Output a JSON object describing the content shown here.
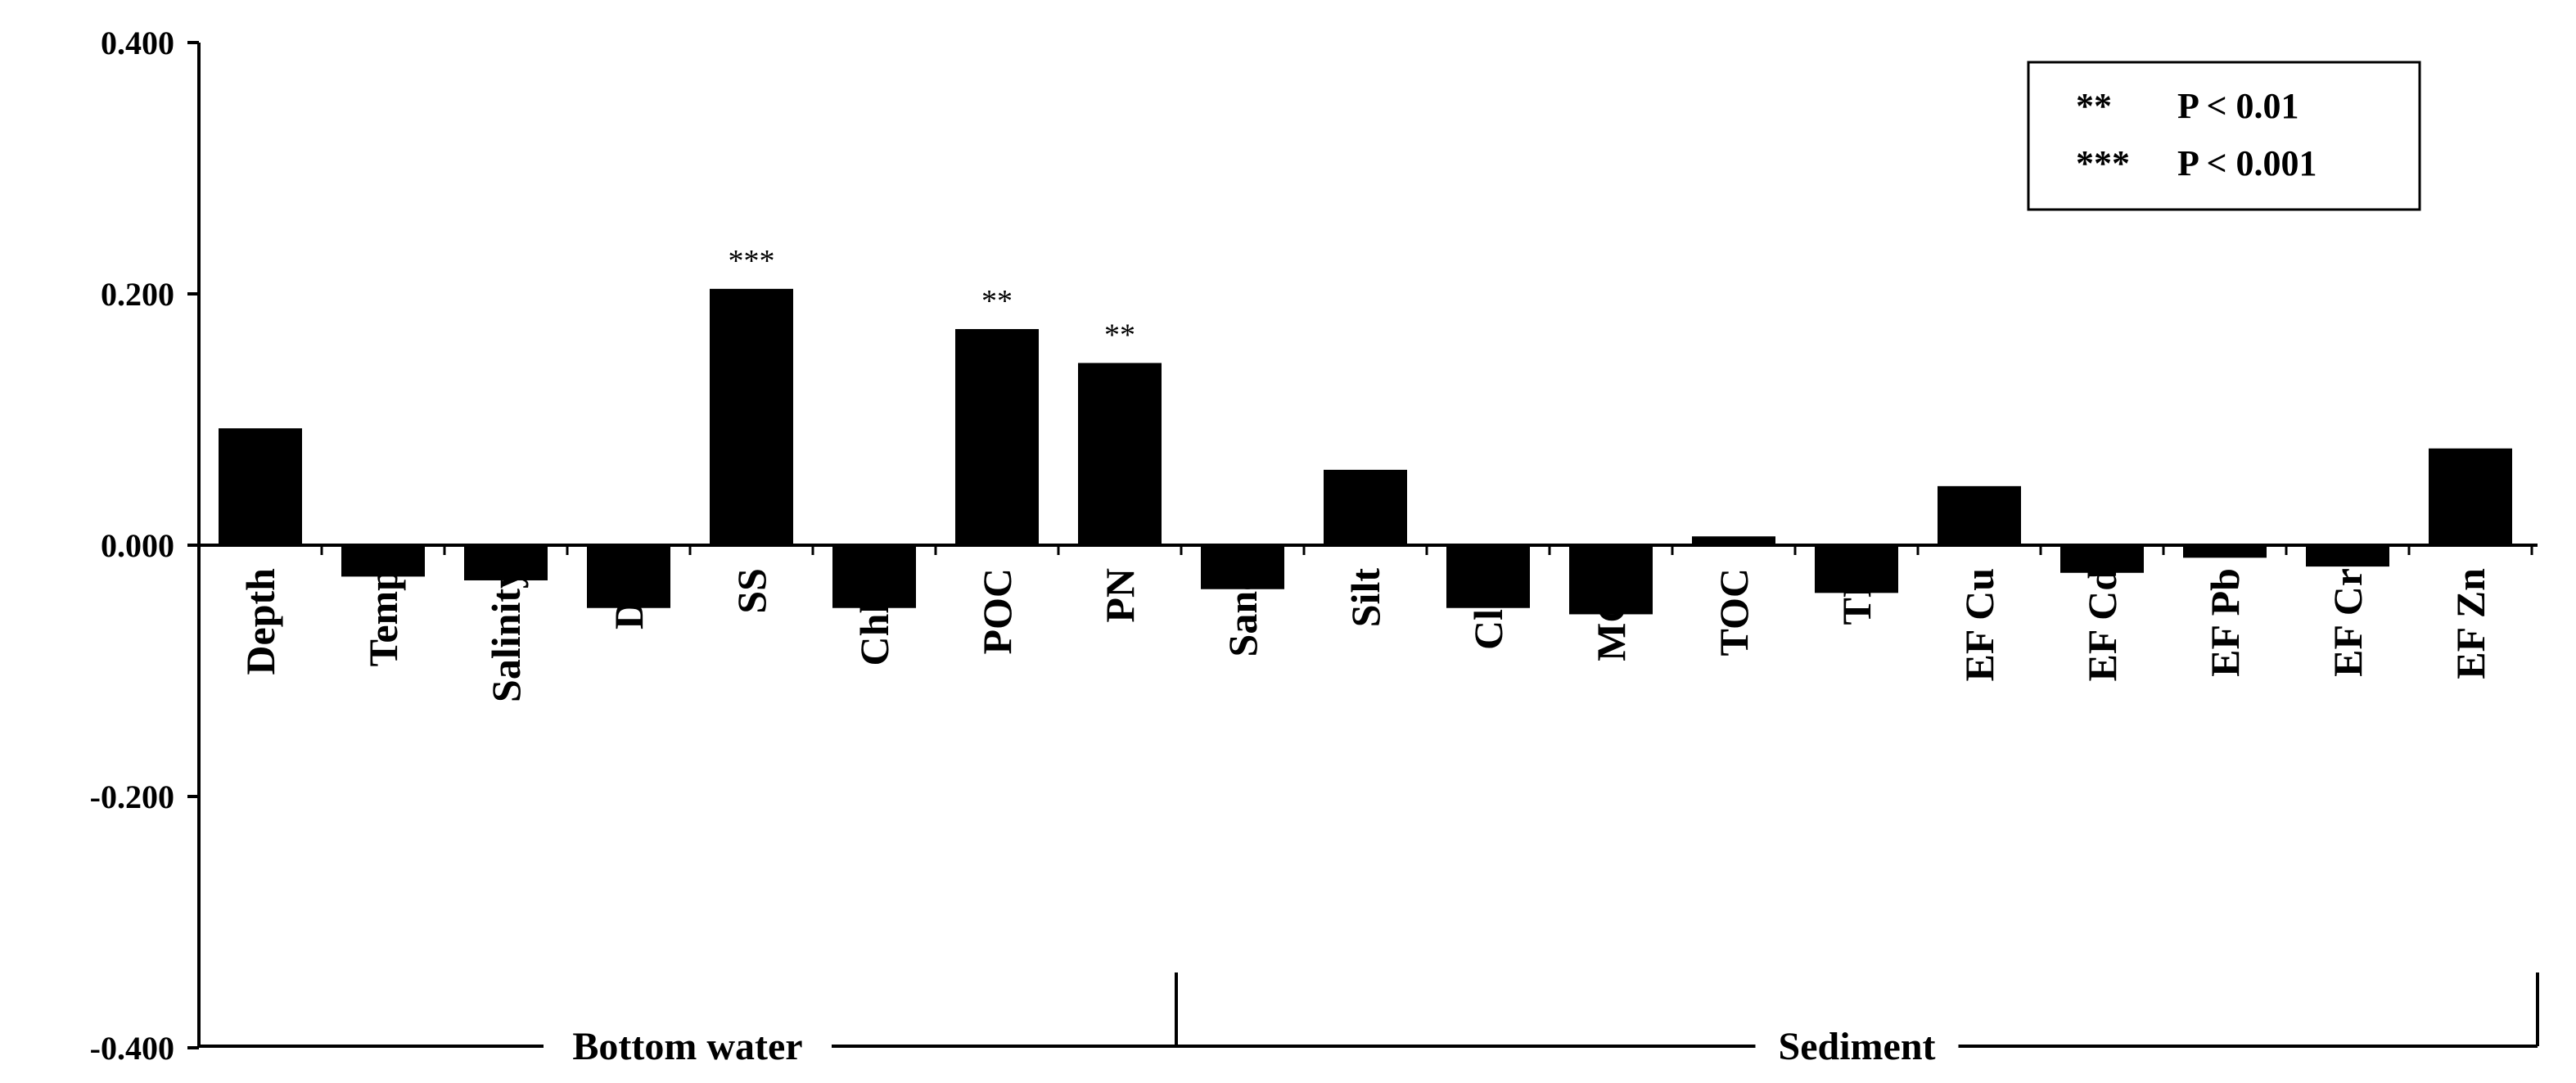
{
  "chart_data": {
    "type": "bar",
    "title": "",
    "xlabel": "",
    "ylabel": "",
    "ylim": [
      -0.4,
      0.4
    ],
    "yticks": [
      "0.400",
      "0.200",
      "0.000",
      "-0.200",
      "-0.400"
    ],
    "categories": [
      "Depth",
      "Temp",
      "Salinity",
      "DO",
      "SS",
      "Chl-a",
      "POC",
      "PN",
      "Sand",
      "Silt",
      "Clay",
      "MGS",
      "TOC",
      "TN",
      "EF Cu",
      "EF Cd",
      "EF Pb",
      "EF Cr",
      "EF Zn"
    ],
    "values": [
      0.093,
      -0.025,
      -0.028,
      -0.05,
      0.204,
      -0.05,
      0.172,
      0.145,
      -0.035,
      0.06,
      -0.05,
      -0.055,
      0.007,
      -0.038,
      0.047,
      -0.022,
      -0.01,
      -0.017,
      0.077
    ],
    "significance": [
      "",
      "",
      "",
      "",
      "***",
      "",
      "**",
      "**",
      "",
      "",
      "",
      "",
      "",
      "",
      "",
      "",
      "",
      "",
      ""
    ],
    "groups": [
      {
        "label": "Bottom water",
        "start_index": 0,
        "end_index": 7
      },
      {
        "label": "Sediment",
        "start_index": 8,
        "end_index": 18
      }
    ],
    "legend": {
      "placement": "top-right",
      "entries": [
        {
          "symbol": "**",
          "text": "P < 0.01"
        },
        {
          "symbol": "***",
          "text": "P < 0.001"
        }
      ]
    },
    "bar_color": "#000000",
    "grid": false
  }
}
